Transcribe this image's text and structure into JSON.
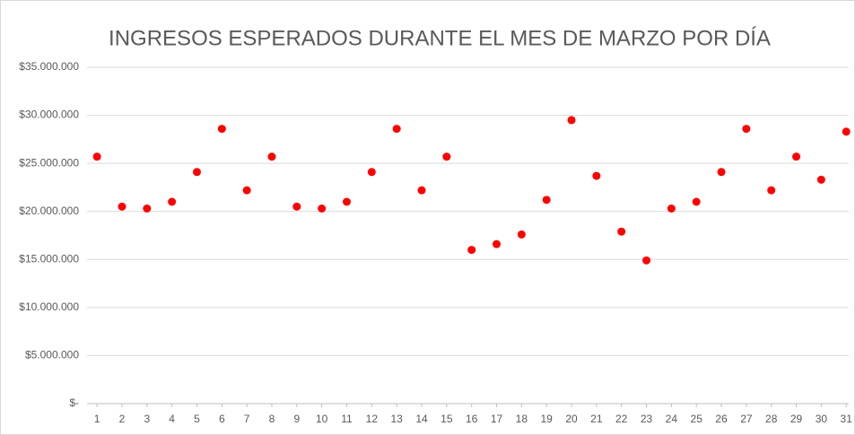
{
  "chart_data": {
    "type": "scatter",
    "title": "INGRESOS ESPERADOS DURANTE EL MES DE MARZO POR DÍA",
    "x": [
      1,
      2,
      3,
      4,
      5,
      6,
      7,
      8,
      9,
      10,
      11,
      12,
      13,
      14,
      15,
      16,
      17,
      18,
      19,
      20,
      21,
      22,
      23,
      24,
      25,
      26,
      27,
      28,
      29,
      30,
      31
    ],
    "values": [
      25700000,
      20500000,
      20300000,
      21000000,
      24100000,
      28600000,
      22200000,
      25700000,
      20500000,
      20300000,
      21000000,
      24100000,
      28600000,
      22200000,
      25700000,
      16000000,
      16600000,
      17600000,
      21200000,
      29500000,
      23700000,
      17900000,
      14900000,
      20300000,
      21000000,
      24100000,
      28600000,
      22200000,
      25700000,
      23300000,
      28300000
    ],
    "color": "#ff0000",
    "xlim": [
      0.6,
      31.1
    ],
    "xticks": [
      1,
      2,
      3,
      4,
      5,
      6,
      7,
      8,
      9,
      10,
      11,
      12,
      13,
      14,
      15,
      16,
      17,
      18,
      19,
      20,
      21,
      22,
      23,
      24,
      25,
      26,
      27,
      28,
      29,
      30,
      31
    ],
    "ylim": [
      0,
      35000000
    ],
    "yticks": [
      {
        "value": 0,
        "label": "$-"
      },
      {
        "value": 5000000,
        "label": "$5.000.000"
      },
      {
        "value": 10000000,
        "label": "$10.000.000"
      },
      {
        "value": 15000000,
        "label": "$15.000.000"
      },
      {
        "value": 20000000,
        "label": "$20.000.000"
      },
      {
        "value": 25000000,
        "label": "$25.000.000"
      },
      {
        "value": 30000000,
        "label": "$30.000.000"
      },
      {
        "value": 35000000,
        "label": "$35.000.000"
      }
    ],
    "grid": true
  }
}
